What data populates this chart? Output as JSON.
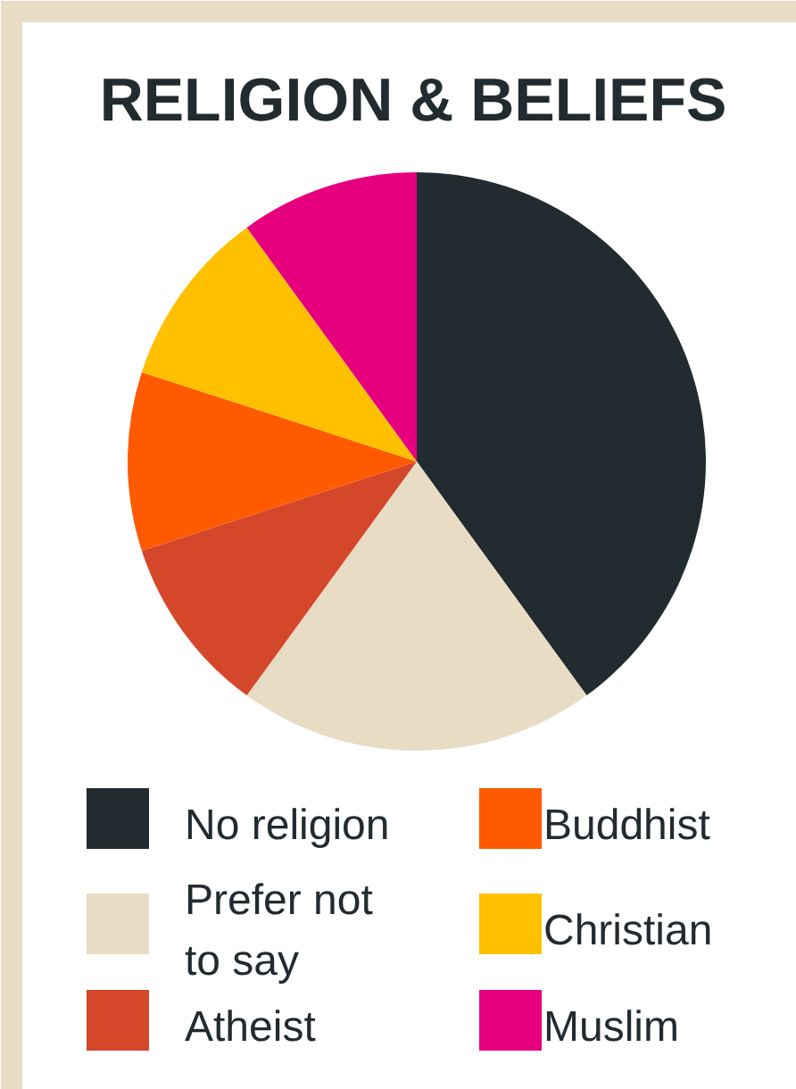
{
  "chart_data": {
    "type": "pie",
    "title": "RELIGION & BELIEFS",
    "categories": [
      "No religion",
      "Prefer not to say",
      "Atheist",
      "Buddhist",
      "Christian",
      "Muslim"
    ],
    "values": [
      40,
      20,
      10,
      10,
      10,
      10
    ],
    "colors": [
      "#222b30",
      "#e8dcc5",
      "#d4472a",
      "#ff5a00",
      "#ffc000",
      "#e6007e"
    ],
    "legend": "bottom"
  }
}
